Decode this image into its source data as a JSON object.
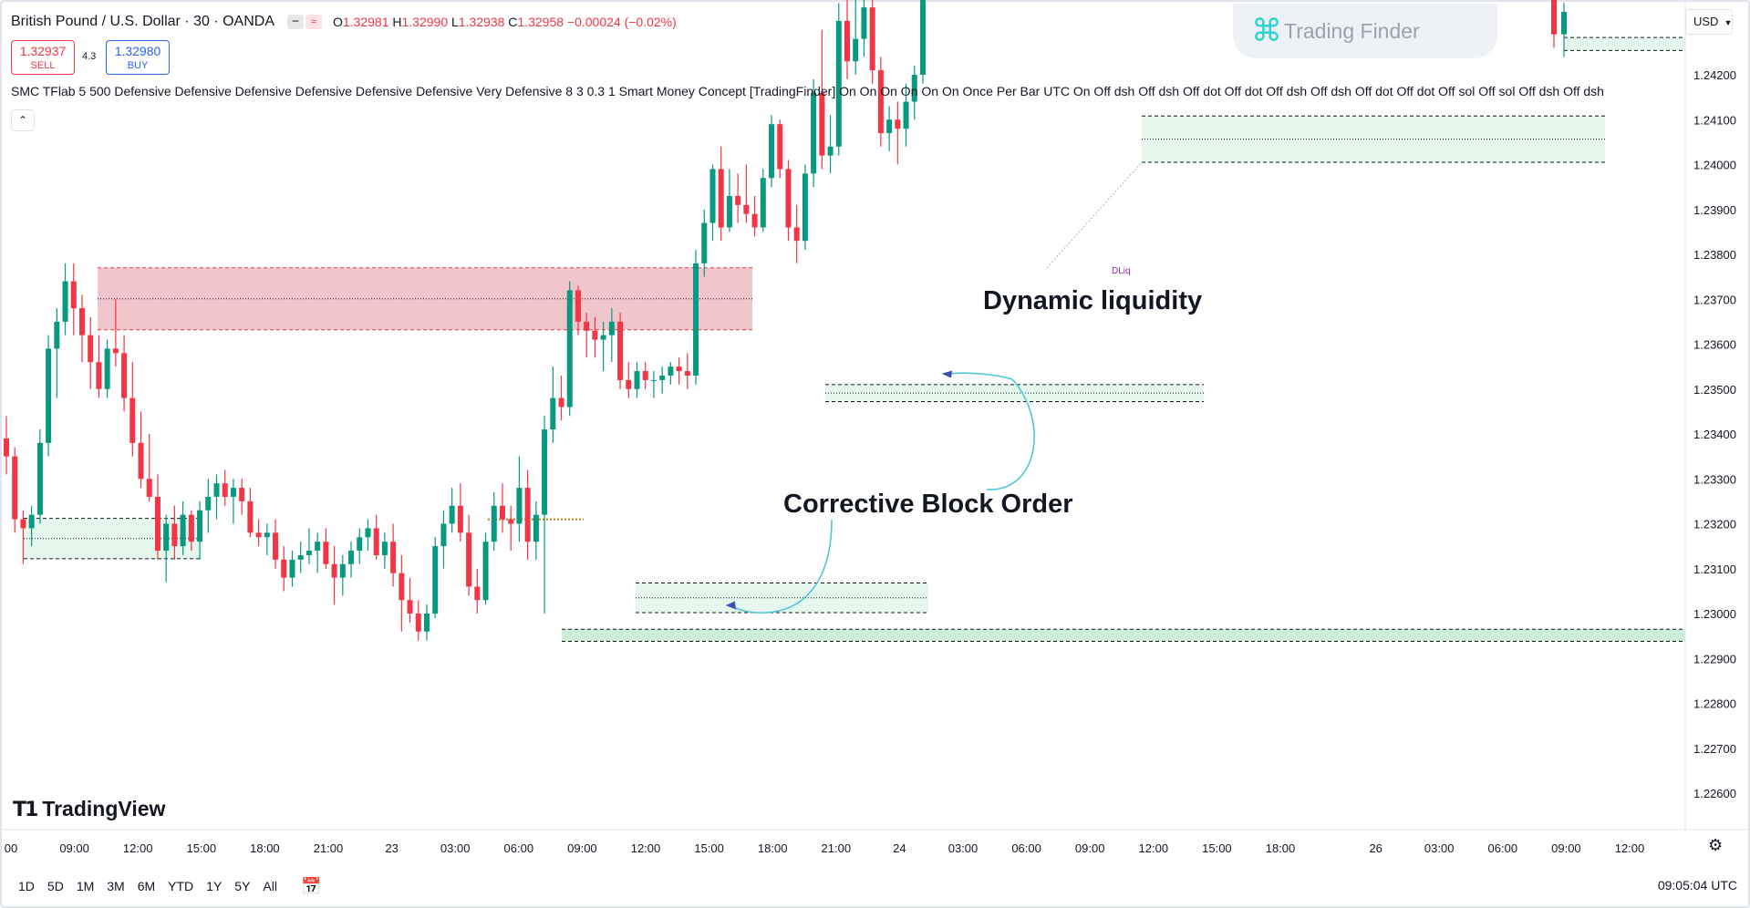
{
  "header": {
    "symbol": "British Pound / U.S. Dollar · 30 · OANDA",
    "open_label": "O",
    "open": "1.32981",
    "high_label": "H",
    "high": "1.32990",
    "low_label": "L",
    "low": "1.32938",
    "close_label": "C",
    "close": "1.32958",
    "change": "−0.00024 (−0.02%)"
  },
  "trade": {
    "sell_price": "1.32937",
    "sell_label": "SELL",
    "buy_price": "1.32980",
    "buy_label": "BUY",
    "spread": "4.3"
  },
  "indicator_line": "SMC TFlab 5 500 Defensive Defensive Defensive Defensive Defensive Defensive Very Defensive 8 3 0.3 1 Smart Money Concept [TradingFinder] On On On On On On Once Per Bar UTC On Off dsh Off dsh Off dot Off dot Off dsh Off dsh Off dot Off dot Off sol Off sol Off dsh Off dsh",
  "collapse_icon": "chevron-up-icon",
  "watermark": "Trading Finder",
  "brand": "TradingView",
  "currency": "USD",
  "timeframes": [
    "1D",
    "5D",
    "1M",
    "3M",
    "6M",
    "YTD",
    "1Y",
    "5Y",
    "All"
  ],
  "clock": "09:05:04 UTC",
  "chart_data": {
    "type": "candlestick",
    "title": "British Pound / U.S. Dollar · 30 · OANDA",
    "ylim": [
      1.2255,
      1.2436
    ],
    "y_ticks": [
      "1.24200",
      "1.24100",
      "1.24000",
      "1.23900",
      "1.23800",
      "1.23700",
      "1.23600",
      "1.23500",
      "1.23400",
      "1.23300",
      "1.23200",
      "1.23100",
      "1.23000",
      "1.22900",
      "1.22800",
      "1.22700",
      "1.22600"
    ],
    "x_ticks": [
      "00",
      "09:00",
      "12:00",
      "15:00",
      "18:00",
      "21:00",
      "23",
      "03:00",
      "06:00",
      "09:00",
      "12:00",
      "15:00",
      "18:00",
      "21:00",
      "24",
      "03:00",
      "06:00",
      "09:00",
      "12:00",
      "15:00",
      "18:00",
      "26",
      "03:00",
      "06:00",
      "09:00",
      "12:00"
    ],
    "colors": {
      "up": "#089981",
      "down": "#f23645",
      "supply": "#f0c2c9",
      "demand": "#e3f6ec",
      "demand_strong": "#c6ecd4"
    },
    "annotations": [
      {
        "text": "Dynamic liquidity",
        "color": "#131722"
      },
      {
        "text": "Corrective Block Order",
        "color": "#131722"
      },
      {
        "text": "DLiq",
        "color": "#9c27b0"
      }
    ],
    "zones": [
      {
        "type": "supply",
        "top": 1.2377,
        "bottom": 1.23632
      },
      {
        "type": "demand",
        "top": 1.23212,
        "bottom": 1.23122
      },
      {
        "type": "demand",
        "top": 1.23068,
        "bottom": 1.23002
      },
      {
        "type": "demand",
        "top": 1.2351,
        "bottom": 1.23472
      },
      {
        "type": "demand",
        "top": 1.24108,
        "bottom": 1.24005
      },
      {
        "type": "demand_strong",
        "top": 1.22965,
        "bottom": 1.22938
      },
      {
        "type": "demand",
        "top": 1.24283,
        "bottom": 1.24254
      }
    ],
    "candles": [
      [
        1.2339,
        1.2344,
        1.2331,
        1.2335
      ],
      [
        1.2335,
        1.2337,
        1.2318,
        1.2321
      ],
      [
        1.2321,
        1.2323,
        1.2311,
        1.2319
      ],
      [
        1.2319,
        1.2324,
        1.2315,
        1.2322
      ],
      [
        1.2322,
        1.2341,
        1.232,
        1.2338
      ],
      [
        1.2338,
        1.2362,
        1.2335,
        1.2359
      ],
      [
        1.2359,
        1.2368,
        1.2348,
        1.2365
      ],
      [
        1.2365,
        1.2378,
        1.2362,
        1.2374
      ],
      [
        1.2374,
        1.2378,
        1.2362,
        1.2368
      ],
      [
        1.2368,
        1.2371,
        1.2356,
        1.2362
      ],
      [
        1.2362,
        1.2366,
        1.235,
        1.2356
      ],
      [
        1.2356,
        1.2362,
        1.2348,
        1.235
      ],
      [
        1.235,
        1.2361,
        1.2348,
        1.2359
      ],
      [
        1.2359,
        1.237,
        1.2355,
        1.2358
      ],
      [
        1.2358,
        1.2362,
        1.2345,
        1.2348
      ],
      [
        1.2348,
        1.2356,
        1.2335,
        1.2338
      ],
      [
        1.2338,
        1.2345,
        1.2328,
        1.233
      ],
      [
        1.233,
        1.234,
        1.2325,
        1.2326
      ],
      [
        1.2326,
        1.2331,
        1.2312,
        1.2314
      ],
      [
        1.2314,
        1.2322,
        1.2307,
        1.232
      ],
      [
        1.232,
        1.2324,
        1.2312,
        1.2315
      ],
      [
        1.2315,
        1.2325,
        1.2313,
        1.2322
      ],
      [
        1.2322,
        1.2323,
        1.2314,
        1.2316
      ],
      [
        1.2316,
        1.2325,
        1.2312,
        1.2323
      ],
      [
        1.2323,
        1.233,
        1.2318,
        1.2326
      ],
      [
        1.2326,
        1.2331,
        1.2321,
        1.2329
      ],
      [
        1.2329,
        1.2332,
        1.2324,
        1.2326
      ],
      [
        1.2326,
        1.233,
        1.232,
        1.2328
      ],
      [
        1.2328,
        1.233,
        1.2322,
        1.2325
      ],
      [
        1.2325,
        1.2328,
        1.2317,
        1.2318
      ],
      [
        1.2318,
        1.2321,
        1.2315,
        1.2317
      ],
      [
        1.2317,
        1.232,
        1.2313,
        1.2318
      ],
      [
        1.2318,
        1.2321,
        1.231,
        1.2312
      ],
      [
        1.2312,
        1.2315,
        1.2305,
        1.2308
      ],
      [
        1.2308,
        1.2314,
        1.2306,
        1.2312
      ],
      [
        1.2312,
        1.2316,
        1.2309,
        1.2313
      ],
      [
        1.2313,
        1.2319,
        1.2311,
        1.2314
      ],
      [
        1.2314,
        1.2318,
        1.2309,
        1.2316
      ],
      [
        1.2316,
        1.2319,
        1.231,
        1.2311
      ],
      [
        1.2311,
        1.2315,
        1.2302,
        1.2308
      ],
      [
        1.2308,
        1.2313,
        1.2304,
        1.2311
      ],
      [
        1.2311,
        1.2316,
        1.2308,
        1.2314
      ],
      [
        1.2314,
        1.2319,
        1.2311,
        1.2317
      ],
      [
        1.2317,
        1.2321,
        1.2314,
        1.2319
      ],
      [
        1.2319,
        1.2322,
        1.2312,
        1.2313
      ],
      [
        1.2313,
        1.2318,
        1.231,
        1.2316
      ],
      [
        1.2316,
        1.232,
        1.2306,
        1.2309
      ],
      [
        1.2309,
        1.2313,
        1.2296,
        1.2303
      ],
      [
        1.2303,
        1.2308,
        1.2298,
        1.23
      ],
      [
        1.23,
        1.2303,
        1.2294,
        1.2296
      ],
      [
        1.2296,
        1.2302,
        1.2294,
        1.23
      ],
      [
        1.23,
        1.2317,
        1.2299,
        1.2315
      ],
      [
        1.2315,
        1.2323,
        1.231,
        1.232
      ],
      [
        1.232,
        1.2328,
        1.2318,
        1.2324
      ],
      [
        1.2324,
        1.2329,
        1.2316,
        1.2318
      ],
      [
        1.2318,
        1.2322,
        1.2304,
        1.2306
      ],
      [
        1.2306,
        1.231,
        1.23,
        1.2303
      ],
      [
        1.2303,
        1.2318,
        1.2302,
        1.2316
      ],
      [
        1.2316,
        1.2327,
        1.2314,
        1.2324
      ],
      [
        1.2324,
        1.2329,
        1.2318,
        1.2321
      ],
      [
        1.2321,
        1.2324,
        1.2314,
        1.232
      ],
      [
        1.232,
        1.2335,
        1.2316,
        1.2328
      ],
      [
        1.2328,
        1.2332,
        1.2312,
        1.2316
      ],
      [
        1.2316,
        1.2325,
        1.2312,
        1.2322
      ],
      [
        1.2322,
        1.2344,
        1.23,
        1.2341
      ],
      [
        1.2341,
        1.2355,
        1.2338,
        1.2348
      ],
      [
        1.2348,
        1.2353,
        1.2343,
        1.2346
      ],
      [
        1.2346,
        1.2374,
        1.2344,
        1.2372
      ],
      [
        1.2372,
        1.2373,
        1.2362,
        1.2365
      ],
      [
        1.2365,
        1.2367,
        1.2357,
        1.2363
      ],
      [
        1.2363,
        1.2366,
        1.2357,
        1.2361
      ],
      [
        1.2361,
        1.2365,
        1.2354,
        1.2362
      ],
      [
        1.2362,
        1.2368,
        1.2356,
        1.2365
      ],
      [
        1.2365,
        1.2367,
        1.235,
        1.2352
      ],
      [
        1.2352,
        1.2356,
        1.2348,
        1.235
      ],
      [
        1.235,
        1.2356,
        1.2348,
        1.2354
      ],
      [
        1.2354,
        1.2356,
        1.235,
        1.2352
      ],
      [
        1.2352,
        1.2354,
        1.2348,
        1.2352
      ],
      [
        1.2352,
        1.2355,
        1.2349,
        1.2353
      ],
      [
        1.2353,
        1.2356,
        1.2351,
        1.2355
      ],
      [
        1.2355,
        1.2357,
        1.2351,
        1.2354
      ],
      [
        1.2354,
        1.2358,
        1.235,
        1.2353
      ],
      [
        1.2353,
        1.2381,
        1.2351,
        1.2378
      ],
      [
        1.2378,
        1.239,
        1.2375,
        1.2387
      ],
      [
        1.2387,
        1.24,
        1.2383,
        1.2399
      ],
      [
        1.2399,
        1.2404,
        1.2383,
        1.2386
      ],
      [
        1.2386,
        1.2399,
        1.2385,
        1.2393
      ],
      [
        1.2393,
        1.2398,
        1.2387,
        1.2391
      ],
      [
        1.2391,
        1.24,
        1.2387,
        1.2389
      ],
      [
        1.2389,
        1.2393,
        1.2384,
        1.2386
      ],
      [
        1.2386,
        1.2399,
        1.2385,
        1.2397
      ],
      [
        1.2397,
        1.2411,
        1.2395,
        1.2409
      ],
      [
        1.2409,
        1.241,
        1.2397,
        1.2399
      ],
      [
        1.2399,
        1.2401,
        1.2383,
        1.2386
      ],
      [
        1.2386,
        1.2391,
        1.2378,
        1.2383
      ],
      [
        1.2383,
        1.24,
        1.2381,
        1.2398
      ],
      [
        1.2398,
        1.2419,
        1.2395,
        1.2416
      ],
      [
        1.2416,
        1.243,
        1.2399,
        1.2402
      ],
      [
        1.2402,
        1.2411,
        1.2398,
        1.2404
      ],
      [
        1.2404,
        1.2436,
        1.2402,
        1.2432
      ],
      [
        1.2432,
        1.2437,
        1.2419,
        1.2423
      ],
      [
        1.2423,
        1.244,
        1.242,
        1.2428
      ],
      [
        1.2428,
        1.244,
        1.2424,
        1.2435
      ],
      [
        1.2435,
        1.2438,
        1.2418,
        1.2421
      ],
      [
        1.2421,
        1.2424,
        1.2404,
        1.2407
      ],
      [
        1.2407,
        1.2413,
        1.2403,
        1.241
      ],
      [
        1.241,
        1.2414,
        1.24,
        1.2408
      ],
      [
        1.2408,
        1.2418,
        1.2404,
        1.2414
      ],
      [
        1.2414,
        1.2422,
        1.241,
        1.242
      ],
      [
        1.242,
        1.244,
        1.2418,
        1.2438
      ]
    ],
    "last_candles": [
      [
        1.2438,
        1.2442,
        1.2426,
        1.2429
      ],
      [
        1.2429,
        1.2436,
        1.2424,
        1.2434
      ]
    ]
  }
}
